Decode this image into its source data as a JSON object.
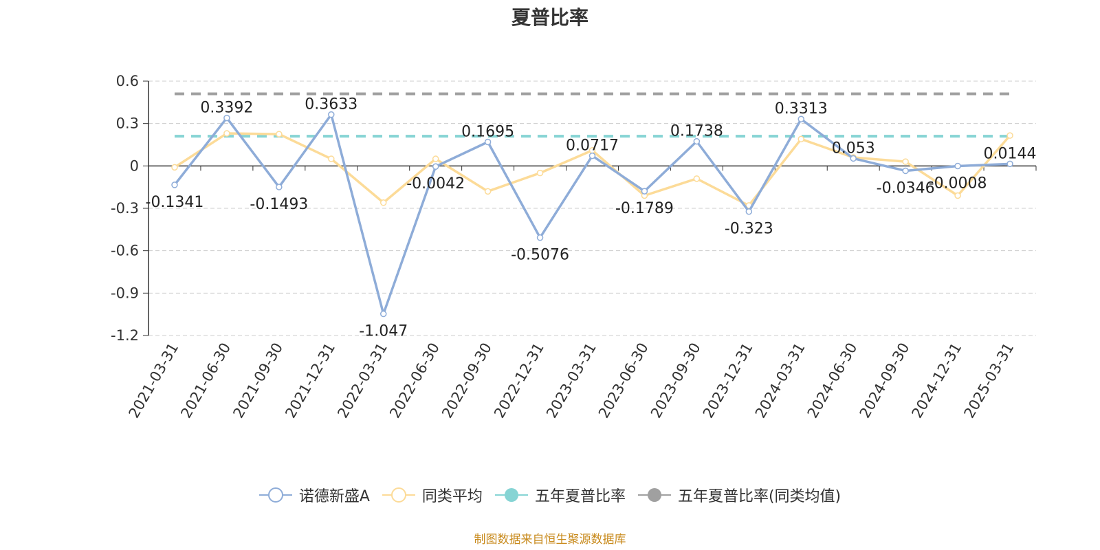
{
  "chart_data": {
    "type": "line",
    "title": "夏普比率",
    "categories": [
      "2021-03-31",
      "2021-06-30",
      "2021-09-30",
      "2021-12-31",
      "2022-03-31",
      "2022-06-30",
      "2022-09-30",
      "2022-12-31",
      "2023-03-31",
      "2023-06-30",
      "2023-09-30",
      "2023-12-31",
      "2024-03-31",
      "2024-06-30",
      "2024-09-30",
      "2024-12-31",
      "2025-03-31"
    ],
    "ylim": [
      -1.2,
      0.6
    ],
    "yticks": [
      0.6,
      0.3,
      0,
      -0.3,
      -0.6,
      -0.9,
      -1.2
    ],
    "ytick_labels": [
      "0.6",
      "0.3",
      "0",
      "-0.3",
      "-0.6",
      "-0.9",
      "-1.2"
    ],
    "grid": true,
    "legend_position": "bottom",
    "series": [
      {
        "name": "诺德新盛A",
        "color": "#8eacd8",
        "values": [
          -0.1341,
          0.3392,
          -0.1493,
          0.3633,
          -1.047,
          -0.0042,
          0.1695,
          -0.5076,
          0.0717,
          -0.1789,
          0.1738,
          -0.323,
          0.3313,
          0.053,
          -0.0346,
          -0.0008,
          0.0144
        ],
        "labels": [
          "-0.1341",
          "0.3392",
          "-0.1493",
          "0.3633",
          "-1.047",
          "-0.0042",
          "0.1695",
          "-0.5076",
          "0.0717",
          "-0.1789",
          "0.1738",
          "-0.323",
          "0.3313",
          "0.053",
          "-0.0346",
          "-0.0008",
          "0.0144"
        ]
      },
      {
        "name": "同类平均",
        "color": "#fcdb98",
        "values": [
          -0.01,
          0.23,
          0.225,
          0.05,
          -0.26,
          0.05,
          -0.18,
          -0.05,
          0.11,
          -0.21,
          -0.09,
          -0.28,
          0.19,
          0.06,
          0.03,
          -0.21,
          0.215
        ]
      },
      {
        "name": "五年夏普比率",
        "color": "#86d4d4",
        "value": 0.21,
        "style": "dashed"
      },
      {
        "name": "五年夏普比率(同类均值)",
        "color": "#a0a0a0",
        "value": 0.51,
        "style": "dashed"
      }
    ]
  },
  "footer": {
    "source_text": "制图数据来自恒生聚源数据库",
    "source_color": "#c88a1c"
  }
}
